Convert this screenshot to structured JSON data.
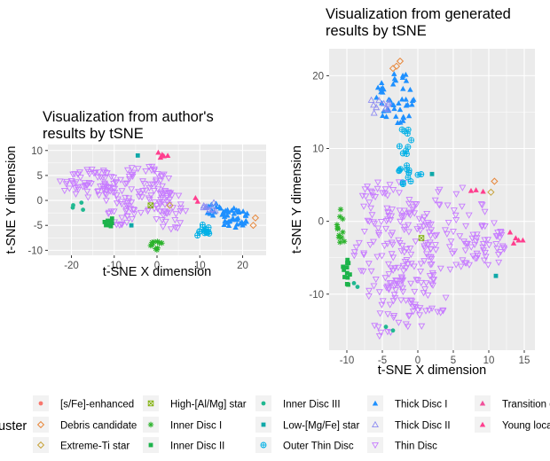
{
  "colors": {
    "panel_bg": "#EBEBEB",
    "grid": "#FFFFFF",
    "thin_disc": "#C77CFF",
    "thick_disc_i": "#1E90FF",
    "thick_disc_ii": "#8E8CF2",
    "outer_thin_disc": "#00B0E6",
    "inner_disc_i": "#2BB32B",
    "inner_disc_ii": "#1DB34B",
    "inner_disc_iii": "#20B890",
    "low_mg_fe": "#0FA8A8",
    "young_local_disc": "#FF3E8E",
    "transition_group": "#F0509A",
    "debris_candidate": "#E8873A",
    "extreme_ti_star": "#C7A23A",
    "high_al_mg_star": "#7CAE00",
    "s_fe_enhanced": "#F8766D"
  },
  "chart_data": [
    {
      "type": "scatter",
      "title_lines": [
        "Visualization from author's",
        " results by tSNE"
      ],
      "xlabel": "t-SNE X dimension",
      "ylabel": "t-SNE Y dimension",
      "xlim": [
        -25.5,
        25.5
      ],
      "ylim": [
        -11,
        11.2
      ],
      "xticks": [
        -20,
        -10,
        0,
        10,
        20
      ],
      "yticks": [
        -10,
        -5,
        0,
        5,
        10
      ],
      "xtick_labels": [
        "-20",
        "-10",
        "0",
        "10",
        "20"
      ],
      "ytick_labels": [
        "-10",
        "-5",
        "0",
        "5",
        "10"
      ],
      "grid": true,
      "series": [
        {
          "name": "Thin Disc",
          "marker": "tri-down-open",
          "color": "thin_disc",
          "regions": [
            {
              "cx": -15,
              "cy": 3.5,
              "rx": 8,
              "ry": 3,
              "n": 70
            },
            {
              "cx": -3,
              "cy": 2,
              "rx": 7,
              "ry": 5,
              "n": 70
            },
            {
              "cx": 3,
              "cy": -2,
              "rx": 4,
              "ry": 4,
              "n": 35
            },
            {
              "cx": -9,
              "cy": -2,
              "rx": 4,
              "ry": 3,
              "n": 25
            }
          ]
        },
        {
          "name": "Thick Disc I",
          "marker": "tri-up",
          "color": "thick_disc_i",
          "regions": [
            {
              "cx": 18,
              "cy": -3.5,
              "rx": 3.5,
              "ry": 2,
              "n": 40
            },
            {
              "cx": 13,
              "cy": -2,
              "rx": 2,
              "ry": 1.5,
              "n": 12
            }
          ]
        },
        {
          "name": "Thick Disc II",
          "marker": "tri-up-open",
          "color": "thick_disc_ii",
          "regions": [
            {
              "cx": 12.5,
              "cy": -1.5,
              "rx": 2,
              "ry": 1.5,
              "n": 8
            }
          ]
        },
        {
          "name": "Outer Thin Disc",
          "marker": "circle-plus",
          "color": "outer_thin_disc",
          "regions": [
            {
              "cx": 10.5,
              "cy": -6,
              "rx": 2,
              "ry": 1.2,
              "n": 14
            }
          ]
        },
        {
          "name": "Inner Disc I",
          "marker": "asterisk",
          "color": "inner_disc_i",
          "regions": [
            {
              "cx": 0,
              "cy": -9,
              "rx": 1.5,
              "ry": 1,
              "n": 10
            }
          ]
        },
        {
          "name": "Inner Disc II",
          "marker": "square",
          "color": "inner_disc_ii",
          "regions": [
            {
              "cx": -11,
              "cy": -4.5,
              "rx": 2.5,
              "ry": 1,
              "n": 10
            }
          ]
        },
        {
          "name": "Inner Disc III",
          "marker": "dot",
          "color": "inner_disc_iii",
          "regions": [
            {
              "cx": -18,
              "cy": -1,
              "rx": 2,
              "ry": 1,
              "n": 4
            }
          ]
        },
        {
          "name": "Low-[Mg/Fe] star",
          "marker": "square",
          "color": "low_mg_fe",
          "points": [
            [
              -4.5,
              9
            ],
            [
              -6,
              -5
            ]
          ]
        },
        {
          "name": "Young local disc",
          "marker": "tri-up",
          "color": "young_local_disc",
          "points": [
            [
              0.3,
              9.6
            ],
            [
              1.2,
              9.2
            ],
            [
              1.6,
              8.9
            ],
            [
              0.8,
              8.6
            ],
            [
              2.5,
              9
            ],
            [
              9,
              0.5
            ],
            [
              9.5,
              -0.2
            ]
          ]
        },
        {
          "name": "Debris candidate",
          "marker": "diamond-open",
          "color": "debris_candidate",
          "points": [
            [
              23,
              -3.5
            ],
            [
              22.5,
              -5
            ]
          ]
        },
        {
          "name": "Extreme-Ti star",
          "marker": "diamond-open",
          "color": "extreme_ti_star",
          "points": [
            [
              3,
              -1
            ]
          ]
        },
        {
          "name": "High-[Al/Mg] star",
          "marker": "square-x",
          "color": "high_al_mg_star",
          "points": [
            [
              -1.5,
              -1
            ]
          ]
        }
      ]
    },
    {
      "type": "scatter",
      "title_lines": [
        "Visualization from generated",
        " results by tSNE"
      ],
      "xlabel": "t-SNE X dimension",
      "ylabel": "t-SNE Y dimension",
      "xlim": [
        -12.5,
        16.5
      ],
      "ylim": [
        -17.7,
        23.7
      ],
      "xticks": [
        -10,
        -5,
        0,
        5,
        10,
        15
      ],
      "yticks": [
        -10,
        0,
        10,
        20
      ],
      "xtick_labels": [
        "-10",
        "-5",
        "0",
        "5",
        "10",
        "15"
      ],
      "ytick_labels": [
        "-10",
        "0",
        "10",
        "20"
      ],
      "grid": true,
      "series": [
        {
          "name": "Thin Disc",
          "marker": "tri-down-open",
          "color": "thin_disc",
          "regions": [
            {
              "cx": -4,
              "cy": 3,
              "rx": 4,
              "ry": 3,
              "n": 40
            },
            {
              "cx": -3,
              "cy": -5,
              "rx": 6,
              "ry": 7,
              "n": 110
            },
            {
              "cx": 5,
              "cy": -1,
              "rx": 5,
              "ry": 6,
              "n": 70
            },
            {
              "cx": 10,
              "cy": -3,
              "rx": 3,
              "ry": 3,
              "n": 30
            },
            {
              "cx": -1,
              "cy": -11,
              "rx": 5,
              "ry": 4,
              "n": 50
            },
            {
              "cx": -5,
              "cy": -15,
              "rx": 1.5,
              "ry": 1,
              "n": 6
            }
          ]
        },
        {
          "name": "Thick Disc I",
          "marker": "tri-up",
          "color": "thick_disc_i",
          "regions": [
            {
              "cx": -3,
              "cy": 17,
              "rx": 3,
              "ry": 3.5,
              "n": 45
            }
          ]
        },
        {
          "name": "Thick Disc II",
          "marker": "tri-up-open",
          "color": "thick_disc_ii",
          "regions": [
            {
              "cx": -5.5,
              "cy": 16,
              "rx": 1.5,
              "ry": 1.5,
              "n": 10
            }
          ]
        },
        {
          "name": "Outer Thin Disc",
          "marker": "circle-plus",
          "color": "outer_thin_disc",
          "regions": [
            {
              "cx": -1.8,
              "cy": 11,
              "rx": 1,
              "ry": 1.8,
              "n": 10
            },
            {
              "cx": -1.5,
              "cy": 6.5,
              "rx": 2.2,
              "ry": 1.5,
              "n": 15
            }
          ]
        },
        {
          "name": "Inner Disc I",
          "marker": "asterisk",
          "color": "inner_disc_i",
          "regions": [
            {
              "cx": -10.7,
              "cy": -1,
              "rx": 0.7,
              "ry": 3,
              "n": 12
            }
          ]
        },
        {
          "name": "Inner Disc II",
          "marker": "square",
          "color": "inner_disc_ii",
          "regions": [
            {
              "cx": -10,
              "cy": -7.5,
              "rx": 0.7,
              "ry": 2.5,
              "n": 12
            }
          ]
        },
        {
          "name": "Inner Disc III",
          "marker": "dot",
          "color": "inner_disc_iii",
          "points": [
            [
              -4.5,
              -14.5
            ],
            [
              -3.5,
              -15
            ],
            [
              -8.5,
              -9
            ],
            [
              -9,
              -8.5
            ]
          ]
        },
        {
          "name": "Low-[Mg/Fe] star",
          "marker": "square",
          "color": "low_mg_fe",
          "points": [
            [
              11,
              -7.5
            ],
            [
              2,
              6.5
            ]
          ]
        },
        {
          "name": "Young local disc",
          "marker": "tri-up",
          "color": "young_local_disc",
          "points": [
            [
              7.5,
              4.2
            ],
            [
              8.2,
              4.3
            ],
            [
              9.2,
              4.1
            ],
            [
              13,
              -1.5
            ],
            [
              13.8,
              -2.3
            ],
            [
              14.2,
              -2.6
            ],
            [
              13.5,
              -3
            ],
            [
              14.8,
              -2.6
            ]
          ]
        },
        {
          "name": "Debris candidate",
          "marker": "diamond-open",
          "color": "debris_candidate",
          "points": [
            [
              -2.5,
              22
            ],
            [
              -3,
              21.3
            ],
            [
              -3.5,
              21
            ],
            [
              10.8,
              5.5
            ]
          ]
        },
        {
          "name": "Extreme-Ti star",
          "marker": "diamond-open",
          "color": "extreme_ti_star",
          "points": [
            [
              10.3,
              4
            ]
          ]
        },
        {
          "name": "High-[Al/Mg] star",
          "marker": "square-x",
          "color": "high_al_mg_star",
          "points": [
            [
              0.5,
              -2.3
            ]
          ]
        }
      ]
    }
  ],
  "legend": {
    "title": "uster",
    "items": [
      {
        "label": "[s/Fe]-enhanced",
        "marker": "dot",
        "color": "s_fe_enhanced"
      },
      {
        "label": "Debris candidate",
        "marker": "diamond-open",
        "color": "debris_candidate"
      },
      {
        "label": "Extreme-Ti star",
        "marker": "diamond-open",
        "color": "extreme_ti_star"
      },
      {
        "label": "High-[Al/Mg] star",
        "marker": "square-x",
        "color": "high_al_mg_star"
      },
      {
        "label": "Inner Disc I",
        "marker": "asterisk",
        "color": "inner_disc_i"
      },
      {
        "label": "Inner Disc II",
        "marker": "square",
        "color": "inner_disc_ii"
      },
      {
        "label": "Inner Disc III",
        "marker": "dot",
        "color": "inner_disc_iii"
      },
      {
        "label": "Low-[Mg/Fe] star",
        "marker": "square",
        "color": "low_mg_fe"
      },
      {
        "label": "Outer Thin Disc",
        "marker": "circle-plus",
        "color": "outer_thin_disc"
      },
      {
        "label": "Thick Disc I",
        "marker": "tri-up",
        "color": "thick_disc_i"
      },
      {
        "label": "Thick Disc II",
        "marker": "tri-up-open",
        "color": "thick_disc_ii"
      },
      {
        "label": "Thin Disc",
        "marker": "tri-down-open",
        "color": "thin_disc"
      },
      {
        "label": "Transition grou",
        "marker": "tri-up",
        "color": "transition_group"
      },
      {
        "label": "Young local di",
        "marker": "tri-up",
        "color": "young_local_disc"
      }
    ]
  }
}
